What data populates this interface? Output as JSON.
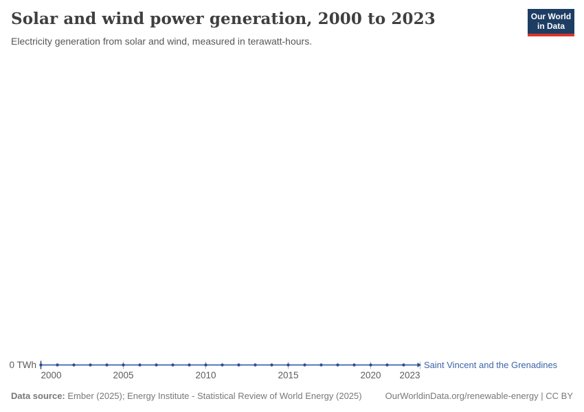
{
  "header": {
    "title": "Solar and wind power generation, 2000 to 2023",
    "subtitle": "Electricity generation from solar and wind, measured in terawatt-hours.",
    "logo": {
      "line1": "Our World",
      "line2": "in Data",
      "bg_color": "#1d3d63",
      "bar_color": "#d8352b"
    }
  },
  "chart_data": {
    "type": "line",
    "title": "Solar and wind power generation, 2000 to 2023",
    "xlabel": "",
    "ylabel": "terawatt-hours",
    "unit": "TWh",
    "grid": false,
    "x_range": [
      2000,
      2023
    ],
    "y_axis_label": "0 TWh",
    "x_ticks": [
      2000,
      2005,
      2010,
      2015,
      2020,
      2023
    ],
    "x_tick_labels": [
      "2000",
      "2005",
      "2010",
      "2015",
      "2020",
      "2023"
    ],
    "legend_position": "right-of-line-end",
    "series": [
      {
        "name": "Saint Vincent and the Grenadines",
        "color": "#5276b5",
        "marker_color": "#2d4e8a",
        "x": [
          2000,
          2001,
          2002,
          2003,
          2004,
          2005,
          2006,
          2007,
          2008,
          2009,
          2010,
          2011,
          2012,
          2013,
          2014,
          2015,
          2016,
          2017,
          2018,
          2019,
          2020,
          2021,
          2022,
          2023
        ],
        "values": [
          0,
          0,
          0,
          0,
          0,
          0,
          0,
          0,
          0,
          0,
          0,
          0,
          0,
          0,
          0,
          0,
          0,
          0,
          0,
          0,
          0,
          0,
          0,
          0
        ]
      }
    ],
    "colors": {
      "line": "#5276b5",
      "marker": "#2d4e8a",
      "tick": "#aab7ca",
      "axis_text": "#5c5c5c",
      "series_label": "#3c64a8"
    }
  },
  "footer": {
    "source_label": "Data source:",
    "source_text": "Ember (2025); Energy Institute - Statistical Review of World Energy (2025)",
    "link_text": "OurWorldinData.org/renewable-energy | CC BY"
  }
}
